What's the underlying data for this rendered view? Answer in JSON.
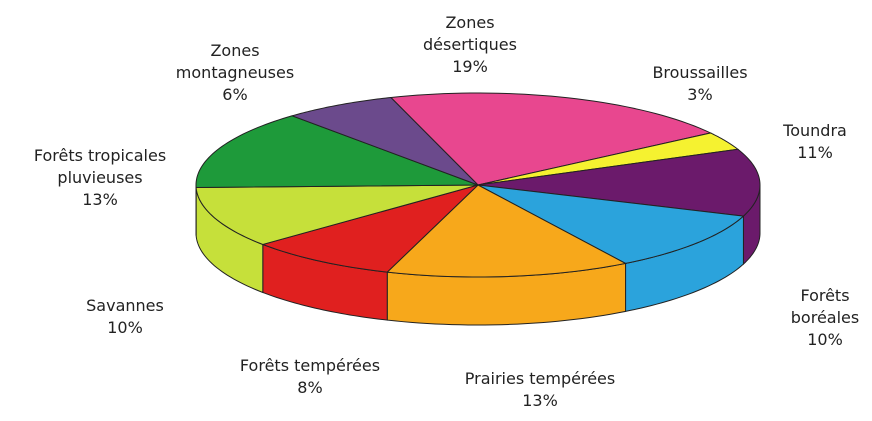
{
  "chart_data": {
    "type": "pie3d",
    "categories": [
      "Zones désertiques",
      "Broussailles",
      "Toundra",
      "Forêts boréales",
      "Prairies tempérées",
      "Forêts tempérées",
      "Savannes",
      "Forêts tropicales pluvieuses",
      "Zones montagneuses"
    ],
    "values": [
      19,
      3,
      11,
      10,
      13,
      8,
      10,
      13,
      6
    ],
    "value_labels": [
      "19%",
      "3%",
      "11%",
      "10%",
      "13%",
      "8%",
      "10%",
      "13%",
      "6%"
    ],
    "colors": [
      "#e8478f",
      "#f5f230",
      "#6b1a6b",
      "#2ba3dc",
      "#f7a81b",
      "#e0201f",
      "#c6e03a",
      "#1e9a3a",
      "#6b4a8c"
    ]
  }
}
